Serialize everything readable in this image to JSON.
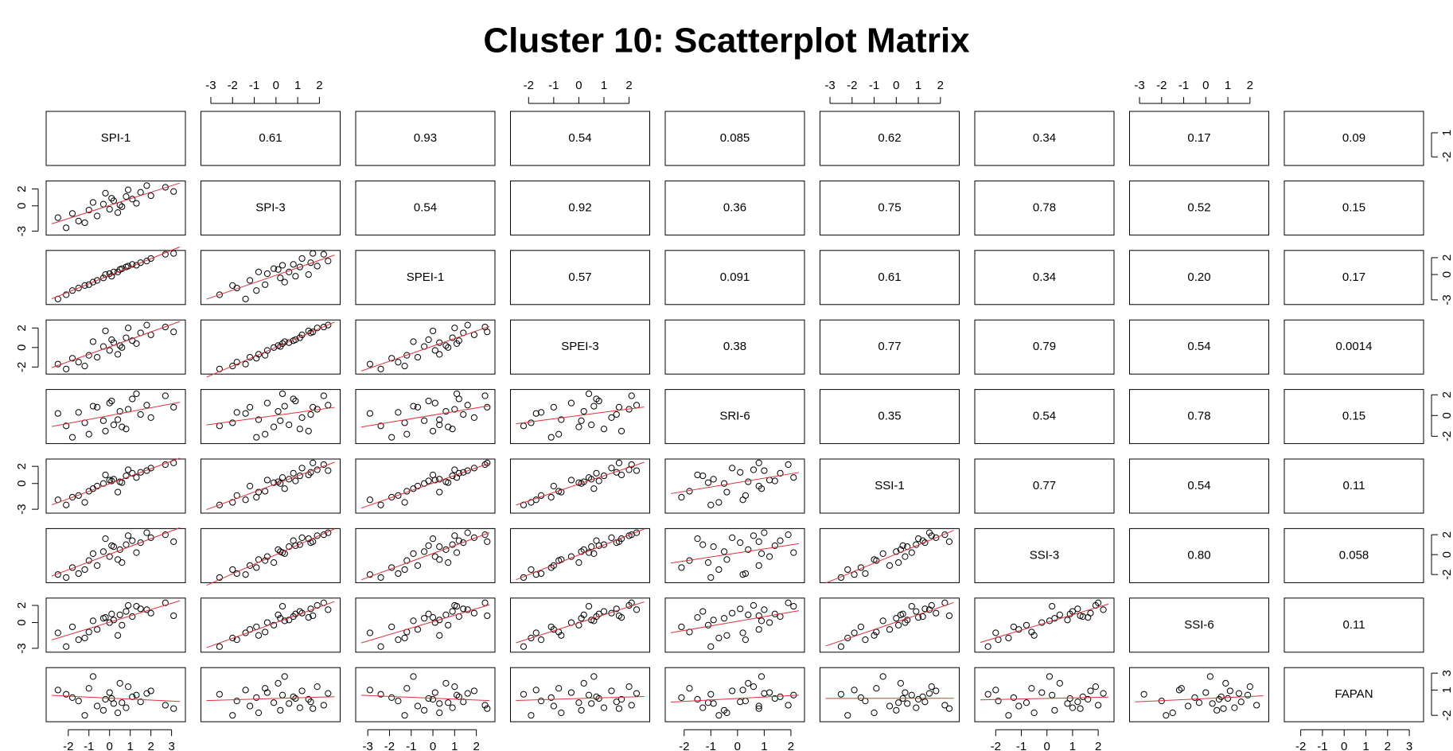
{
  "chart_data": {
    "type": "scatter_matrix",
    "title": "Cluster 10: Scatterplot Matrix",
    "variables": [
      {
        "name": "SPI-1",
        "lim": [
          -2.8,
          3.4
        ],
        "xticks": [
          -2,
          -1,
          0,
          1,
          2,
          3
        ],
        "yticks": [
          -2,
          1
        ]
      },
      {
        "name": "SPI-3",
        "lim": [
          -3.2,
          2.7
        ],
        "xticks": [
          -3,
          -2,
          -1,
          0,
          1,
          2
        ],
        "yticks": [
          -3,
          0,
          2
        ]
      },
      {
        "name": "SPEI-1",
        "lim": [
          -3.3,
          2.6
        ],
        "xticks": [
          -3,
          -2,
          -1,
          0,
          1,
          2
        ],
        "yticks": [
          -3,
          0,
          2
        ]
      },
      {
        "name": "SPEI-3",
        "lim": [
          -2.5,
          2.6
        ],
        "xticks": [
          -2,
          -1,
          0,
          1,
          2
        ],
        "yticks": [
          -2,
          0,
          2
        ]
      },
      {
        "name": "SRI-6",
        "lim": [
          -2.5,
          2.3
        ],
        "xticks": [
          -2,
          -1,
          0,
          1,
          2
        ],
        "yticks": [
          -2,
          0,
          2
        ]
      },
      {
        "name": "SSI-1",
        "lim": [
          -3.2,
          2.6
        ],
        "xticks": [
          -3,
          -2,
          -1,
          0,
          1,
          2
        ],
        "yticks": [
          -3,
          0,
          2
        ]
      },
      {
        "name": "SSI-3",
        "lim": [
          -2.6,
          2.4
        ],
        "xticks": [
          -2,
          -1,
          0,
          1,
          2
        ],
        "yticks": [
          -2,
          0,
          2
        ]
      },
      {
        "name": "SSI-6",
        "lim": [
          -3.2,
          2.6
        ],
        "xticks": [
          -3,
          -2,
          -1,
          0,
          1,
          2
        ],
        "yticks": [
          -3,
          0,
          2
        ]
      },
      {
        "name": "FAPAN",
        "lim": [
          -2.5,
          3.4
        ],
        "xticks": [
          -2,
          -1,
          0,
          1,
          2,
          3
        ],
        "yticks": [
          -2,
          1,
          3
        ]
      }
    ],
    "correlations": [
      [
        0.61,
        0.93,
        0.54,
        0.085,
        0.62,
        0.34,
        0.17,
        0.09
      ],
      [
        0.54,
        0.92,
        0.36,
        0.75,
        0.78,
        0.52,
        0.15
      ],
      [
        0.57,
        0.091,
        0.61,
        0.34,
        {
          "value": 0.2,
          "label": "0.20"
        },
        0.17
      ],
      [
        0.38,
        0.77,
        0.79,
        0.54,
        0.0014
      ],
      [
        0.35,
        0.54,
        0.78,
        0.15
      ],
      [
        0.77,
        0.54,
        0.11
      ],
      [
        {
          "value": 0.8,
          "label": "0.80"
        },
        0.058
      ],
      [
        0.11
      ]
    ],
    "point_color": "#000000",
    "smooth_color": "#e0303a",
    "observations": [
      [
        -2.1,
        -2.6,
        -2.4,
        -2.2,
        -1.0,
        -2.5,
        -2.3,
        -2.8,
        0.5
      ],
      [
        -1.5,
        -1.8,
        -1.6,
        -1.5,
        0.3,
        -1.4,
        -1.9,
        -2.0,
        -0.3
      ],
      [
        -1.0,
        -0.5,
        -1.2,
        -0.8,
        -1.8,
        -0.9,
        -0.6,
        -1.1,
        1.2
      ],
      [
        -0.6,
        -1.2,
        -0.7,
        -1.0,
        0.8,
        -0.3,
        -1.1,
        -0.8,
        -0.9
      ],
      [
        -0.3,
        0.2,
        -0.4,
        0.1,
        -0.5,
        0.0,
        0.3,
        0.5,
        -1.4
      ],
      [
        0.0,
        -0.4,
        0.1,
        -0.3,
        1.2,
        0.4,
        -0.2,
        0.0,
        0.7
      ],
      [
        0.2,
        0.6,
        0.3,
        0.5,
        -0.9,
        0.5,
        0.8,
        0.3,
        -0.6
      ],
      [
        0.5,
        0.1,
        0.6,
        0.2,
        0.4,
        0.2,
        0.5,
        0.9,
        1.8
      ],
      [
        0.8,
        1.1,
        0.9,
        1.0,
        -1.3,
        0.9,
        1.0,
        1.3,
        -1.1
      ],
      [
        1.1,
        0.8,
        1.2,
        0.7,
        1.6,
        1.2,
        1.4,
        0.7,
        0.2
      ],
      [
        1.5,
        1.6,
        1.4,
        1.5,
        0.1,
        1.3,
        1.2,
        1.6,
        -0.4
      ],
      [
        2.0,
        1.2,
        1.9,
        1.3,
        -0.2,
        1.8,
        1.7,
        1.1,
        0.9
      ],
      [
        2.7,
        2.2,
        2.4,
        2.1,
        1.9,
        2.2,
        2.0,
        2.3,
        -0.8
      ],
      [
        -1.8,
        -0.9,
        -1.9,
        -1.1,
        -2.1,
        -1.6,
        -1.3,
        -0.5,
        0.1
      ],
      [
        -0.8,
        0.4,
        -0.9,
        0.6,
        0.9,
        -0.6,
        0.1,
        0.2,
        2.6
      ],
      [
        0.4,
        -0.8,
        0.3,
        -0.7,
        -0.4,
        -1.0,
        -0.5,
        -1.5,
        -1.7
      ],
      [
        1.3,
        0.3,
        1.1,
        0.4,
        2.1,
        0.7,
        0.2,
        1.9,
        0.4
      ],
      [
        -0.2,
        1.5,
        0.0,
        1.7,
        -1.5,
        1.0,
        1.6,
        0.6,
        -0.1
      ],
      [
        0.9,
        1.9,
        1.0,
        2.0,
        0.6,
        1.6,
        1.9,
        2.0,
        1.4
      ],
      [
        -1.2,
        -2.0,
        -1.3,
        -1.9,
        -0.7,
        -2.2,
        -1.5,
        -1.8,
        -2.0
      ],
      [
        3.1,
        1.7,
        2.5,
        1.6,
        0.8,
        2.4,
        1.3,
        0.8,
        -1.2
      ],
      [
        0.1,
        0.9,
        -0.2,
        0.8,
        1.4,
        0.3,
        0.9,
        1.0,
        0.0
      ],
      [
        -2.5,
        -1.4,
        -2.9,
        -1.7,
        0.2,
        -1.9,
        -2.0,
        -1.2,
        1.0
      ],
      [
        0.6,
        -0.1,
        0.7,
        0.0,
        -1.1,
        0.1,
        -0.8,
        -0.3,
        -0.5
      ],
      [
        1.8,
        2.4,
        1.6,
        2.3,
        1.0,
        1.5,
        2.2,
        1.5,
        0.6
      ]
    ]
  }
}
